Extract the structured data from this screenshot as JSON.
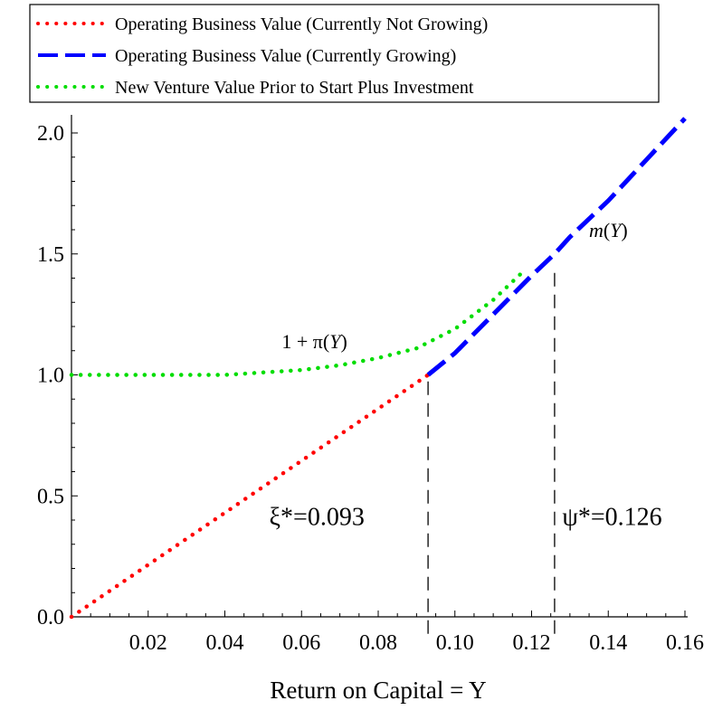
{
  "chart_data": {
    "type": "line",
    "xlabel": "Return on Capital = Y",
    "ylabel": "",
    "xlim": [
      0,
      0.16
    ],
    "ylim": [
      0,
      2.05
    ],
    "x_ticks": [
      0.02,
      0.04,
      0.06,
      0.08,
      0.1,
      0.12,
      0.14,
      0.16
    ],
    "x_tick_labels": [
      "0.02",
      "0.04",
      "0.06",
      "0.08",
      "0.10",
      "0.12",
      "0.14",
      "0.16"
    ],
    "y_ticks": [
      0.0,
      0.5,
      1.0,
      1.5,
      2.0
    ],
    "y_tick_labels": [
      "0.0",
      "0.5",
      "1.0",
      "1.5",
      "2.0"
    ],
    "legend_position": "top",
    "series": [
      {
        "name": "Operating Business Value (Currently Not Growing)",
        "color": "#ff0000",
        "style": "dotted",
        "x": [
          0.0,
          0.093
        ],
        "y": [
          0.0,
          1.0
        ]
      },
      {
        "name": "Operating Business Value (Currently Growing)",
        "color": "#0000ff",
        "style": "dashed",
        "x": [
          0.093,
          0.1,
          0.11,
          0.12,
          0.126,
          0.13,
          0.14,
          0.15,
          0.16
        ],
        "y": [
          1.0,
          1.09,
          1.25,
          1.41,
          1.5,
          1.57,
          1.72,
          1.89,
          2.06
        ]
      },
      {
        "name": "New Venture Value Prior to Start Plus Investment",
        "color": "#00dd00",
        "style": "dotted",
        "x": [
          0.0,
          0.02,
          0.04,
          0.05,
          0.06,
          0.07,
          0.08,
          0.09,
          0.1,
          0.11,
          0.118
        ],
        "y": [
          1.0,
          1.0,
          1.0,
          1.01,
          1.02,
          1.04,
          1.07,
          1.11,
          1.19,
          1.31,
          1.43
        ]
      }
    ],
    "vlines": [
      {
        "x": 0.093,
        "y_from": -0.07,
        "y_to": 1.0
      },
      {
        "x": 0.126,
        "y_from": -0.07,
        "y_to": 1.44
      }
    ],
    "annotations": [
      {
        "id": "xi",
        "text": "ξ*=0.093",
        "x": 0.064,
        "y": 0.38
      },
      {
        "id": "psi",
        "text": "ψ*=0.126",
        "x": 0.141,
        "y": 0.38
      }
    ],
    "curve_labels": {
      "pi": {
        "prefix": "1 + π(",
        "var": "Y",
        "suffix": ")",
        "x": 0.069,
        "y": 1.11
      },
      "m": {
        "prefix": "m",
        "open": "(",
        "var": "Y",
        "close": ")",
        "x": 0.143,
        "y": 1.57
      }
    }
  }
}
